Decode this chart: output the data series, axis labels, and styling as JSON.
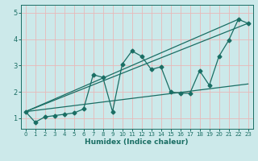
{
  "xlabel": "Humidex (Indice chaleur)",
  "bg_color": "#cce9ea",
  "grid_color": "#e8b8b8",
  "line_color": "#1a6e64",
  "xlim": [
    -0.5,
    23.5
  ],
  "ylim": [
    0.6,
    5.3
  ],
  "xticks": [
    0,
    1,
    2,
    3,
    4,
    5,
    6,
    7,
    8,
    9,
    10,
    11,
    12,
    13,
    14,
    15,
    16,
    17,
    18,
    19,
    20,
    21,
    22,
    23
  ],
  "yticks": [
    1,
    2,
    3,
    4,
    5
  ],
  "main_x": [
    0,
    1,
    2,
    3,
    4,
    5,
    6,
    7,
    8,
    9,
    10,
    11,
    12,
    13,
    14,
    15,
    16,
    17,
    18,
    19,
    20,
    21,
    22,
    23
  ],
  "main_y": [
    1.25,
    0.85,
    1.05,
    1.1,
    1.15,
    1.2,
    1.35,
    2.65,
    2.55,
    1.25,
    3.05,
    3.55,
    3.35,
    2.85,
    2.95,
    2.0,
    1.95,
    1.95,
    2.8,
    2.25,
    3.35,
    3.95,
    4.75,
    4.6
  ],
  "trend_lines": [
    {
      "x0": 0,
      "y0": 1.25,
      "x1": 22,
      "y1": 4.75
    },
    {
      "x0": 0,
      "y0": 1.25,
      "x1": 23,
      "y1": 4.6
    },
    {
      "x0": 0,
      "y0": 1.25,
      "x1": 23,
      "y1": 2.3
    }
  ]
}
